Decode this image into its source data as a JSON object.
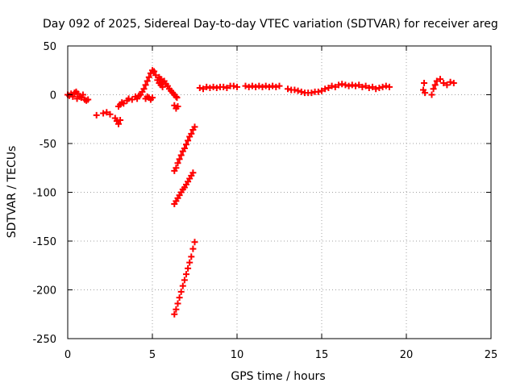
{
  "chart_data": {
    "type": "scatter",
    "title": "Day 092 of 2025, Sidereal Day-to-day VTEC variation (SDTVAR) for receiver areg",
    "xlabel": "GPS time / hours",
    "ylabel": "SDTVAR / TECUs",
    "xlim": [
      0,
      25
    ],
    "ylim": [
      -250,
      50
    ],
    "xticks": [
      "0",
      "5",
      "10",
      "15",
      "20",
      "25"
    ],
    "yticks": [
      "50",
      "0",
      "-50",
      "-100",
      "-150",
      "-200",
      "-250"
    ],
    "grid": true,
    "legend": "none",
    "marker": "plus",
    "color": "#ff0000",
    "series": [
      {
        "points": [
          [
            0.0,
            0
          ],
          [
            0.1,
            -1
          ],
          [
            0.2,
            1
          ],
          [
            0.3,
            -2
          ],
          [
            0.4,
            2
          ],
          [
            0.5,
            3
          ],
          [
            0.55,
            -4
          ],
          [
            0.6,
            1
          ],
          [
            0.7,
            -2
          ],
          [
            0.8,
            -3
          ],
          [
            0.9,
            0
          ],
          [
            1.0,
            -5
          ],
          [
            1.1,
            -6
          ],
          [
            1.2,
            -5
          ],
          [
            1.7,
            -21
          ],
          [
            2.1,
            -19
          ],
          [
            2.3,
            -18
          ],
          [
            2.5,
            -20
          ],
          [
            2.8,
            -24
          ],
          [
            2.9,
            -27
          ],
          [
            3.0,
            -30
          ],
          [
            3.1,
            -26
          ],
          [
            3.0,
            -12
          ],
          [
            3.1,
            -10
          ],
          [
            3.2,
            -8
          ],
          [
            3.3,
            -9
          ],
          [
            3.5,
            -6
          ],
          [
            3.6,
            -4
          ],
          [
            3.8,
            -5
          ],
          [
            4.0,
            -2
          ],
          [
            4.1,
            -4
          ],
          [
            4.2,
            -1
          ],
          [
            4.3,
            0
          ],
          [
            4.4,
            3
          ],
          [
            4.5,
            6
          ],
          [
            4.6,
            10
          ],
          [
            4.7,
            14
          ],
          [
            4.8,
            18
          ],
          [
            4.9,
            22
          ],
          [
            5.0,
            25
          ],
          [
            5.1,
            24
          ],
          [
            5.2,
            20
          ],
          [
            5.3,
            15
          ],
          [
            5.4,
            12
          ],
          [
            5.5,
            10
          ],
          [
            5.6,
            8
          ],
          [
            4.6,
            -4
          ],
          [
            4.7,
            -2
          ],
          [
            4.8,
            -3
          ],
          [
            4.9,
            -5
          ],
          [
            5.0,
            -3
          ],
          [
            5.4,
            18
          ],
          [
            5.5,
            16
          ],
          [
            5.6,
            13
          ],
          [
            5.7,
            14
          ],
          [
            5.8,
            11
          ],
          [
            5.9,
            9
          ],
          [
            6.0,
            6
          ],
          [
            6.1,
            4
          ],
          [
            6.2,
            2
          ],
          [
            6.3,
            0
          ],
          [
            6.4,
            -2
          ],
          [
            6.45,
            -3
          ],
          [
            6.3,
            -11
          ],
          [
            6.4,
            -14
          ],
          [
            6.5,
            -12
          ],
          [
            6.3,
            -78
          ],
          [
            6.4,
            -75
          ],
          [
            6.5,
            -70
          ],
          [
            6.6,
            -66
          ],
          [
            6.7,
            -62
          ],
          [
            6.8,
            -58
          ],
          [
            6.9,
            -55
          ],
          [
            7.0,
            -51
          ],
          [
            7.1,
            -47
          ],
          [
            7.2,
            -43
          ],
          [
            7.3,
            -40
          ],
          [
            7.4,
            -36
          ],
          [
            7.5,
            -33
          ],
          [
            6.3,
            -112
          ],
          [
            6.4,
            -109
          ],
          [
            6.5,
            -106
          ],
          [
            6.6,
            -103
          ],
          [
            6.7,
            -100
          ],
          [
            6.8,
            -97
          ],
          [
            6.9,
            -95
          ],
          [
            7.0,
            -92
          ],
          [
            7.1,
            -89
          ],
          [
            7.2,
            -86
          ],
          [
            7.3,
            -83
          ],
          [
            7.4,
            -80
          ],
          [
            6.3,
            -225
          ],
          [
            6.4,
            -220
          ],
          [
            6.5,
            -214
          ],
          [
            6.6,
            -208
          ],
          [
            6.7,
            -202
          ],
          [
            6.8,
            -196
          ],
          [
            6.9,
            -190
          ],
          [
            7.0,
            -184
          ],
          [
            7.1,
            -178
          ],
          [
            7.2,
            -172
          ],
          [
            7.3,
            -166
          ],
          [
            7.4,
            -158
          ],
          [
            7.5,
            -151
          ],
          [
            7.8,
            7
          ],
          [
            8.0,
            6
          ],
          [
            8.2,
            8
          ],
          [
            8.4,
            7
          ],
          [
            8.6,
            8
          ],
          [
            8.8,
            7
          ],
          [
            9.0,
            8
          ],
          [
            9.2,
            8
          ],
          [
            9.4,
            7
          ],
          [
            9.6,
            9
          ],
          [
            9.8,
            9
          ],
          [
            10.0,
            8
          ],
          [
            10.5,
            9
          ],
          [
            10.7,
            8
          ],
          [
            10.9,
            9
          ],
          [
            11.1,
            8
          ],
          [
            11.3,
            9
          ],
          [
            11.5,
            8
          ],
          [
            11.7,
            9
          ],
          [
            11.9,
            8
          ],
          [
            12.1,
            9
          ],
          [
            12.3,
            8
          ],
          [
            12.5,
            9
          ],
          [
            13.0,
            6
          ],
          [
            13.2,
            5
          ],
          [
            13.4,
            5
          ],
          [
            13.6,
            4
          ],
          [
            13.8,
            3
          ],
          [
            14.0,
            2
          ],
          [
            14.2,
            2
          ],
          [
            14.4,
            2
          ],
          [
            14.6,
            3
          ],
          [
            14.8,
            3
          ],
          [
            15.0,
            4
          ],
          [
            15.2,
            6
          ],
          [
            15.4,
            7
          ],
          [
            15.6,
            9
          ],
          [
            15.8,
            8
          ],
          [
            16.0,
            10
          ],
          [
            16.2,
            11
          ],
          [
            16.4,
            10
          ],
          [
            16.6,
            9
          ],
          [
            16.8,
            10
          ],
          [
            17.0,
            9
          ],
          [
            17.2,
            10
          ],
          [
            17.4,
            8
          ],
          [
            17.6,
            9
          ],
          [
            17.8,
            7
          ],
          [
            18.0,
            8
          ],
          [
            18.2,
            6
          ],
          [
            18.4,
            7
          ],
          [
            18.6,
            8
          ],
          [
            18.8,
            9
          ],
          [
            19.0,
            8
          ],
          [
            21.0,
            5
          ],
          [
            21.05,
            12
          ],
          [
            21.1,
            2
          ],
          [
            21.5,
            0
          ],
          [
            21.6,
            6
          ],
          [
            21.7,
            10
          ],
          [
            21.8,
            14
          ],
          [
            22.0,
            16
          ],
          [
            22.2,
            12
          ],
          [
            22.4,
            10
          ],
          [
            22.6,
            13
          ],
          [
            22.8,
            12
          ]
        ]
      }
    ]
  }
}
